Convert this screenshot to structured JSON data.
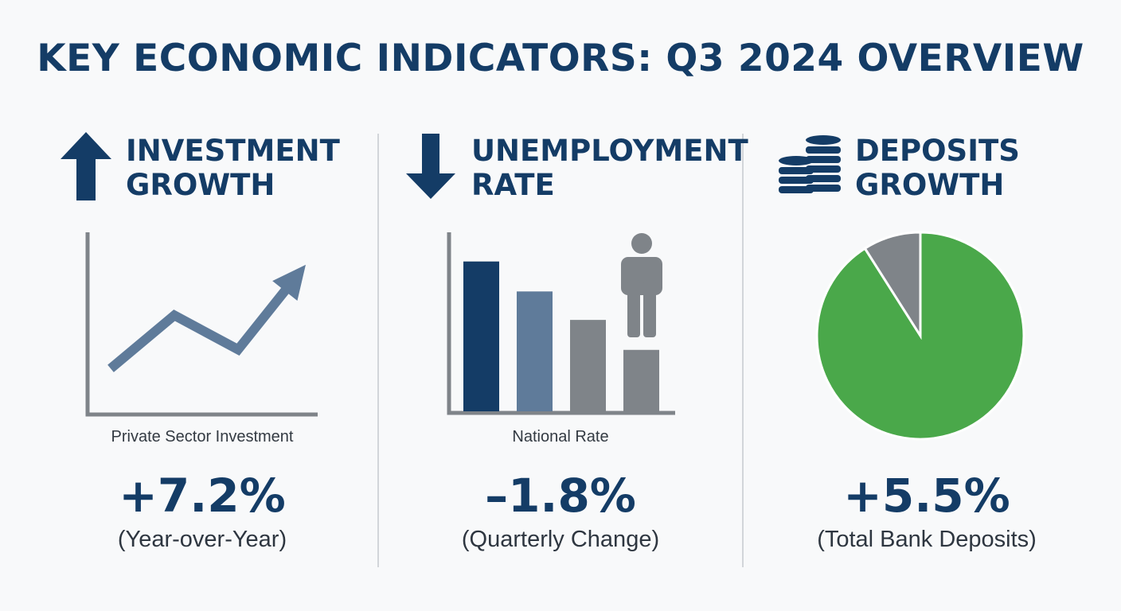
{
  "title": "KEY ECONOMIC INDICATORS: Q3 2024 OVERVIEW",
  "colors": {
    "navy": "#143c66",
    "steel": "#5f7b9a",
    "gray": "#7f8489",
    "green": "#4aa84a",
    "divider": "#d2d5d9"
  },
  "panels": [
    {
      "heading": [
        "INVESTMENT",
        "GROWTH"
      ],
      "icon": "arrow-up-icon",
      "caption": "Private Sector Investment",
      "value": "+7.2%",
      "subtitle": "(Year-over-Year)"
    },
    {
      "heading": [
        "UNEMPLOYMENT",
        "RATE"
      ],
      "icon": "arrow-down-icon",
      "caption": "National Rate",
      "value": "–1.8%",
      "subtitle": "(Quarterly Change)"
    },
    {
      "heading": [
        "DEPOSITS",
        "GROWTH"
      ],
      "icon": "coin-stacks-icon",
      "caption": "",
      "value": "+5.5%",
      "subtitle": "(Total Bank Deposits)"
    }
  ],
  "chart_data": [
    {
      "type": "line",
      "title": "Private Sector Investment",
      "x": [
        1,
        2,
        3,
        4
      ],
      "values": [
        2.0,
        4.8,
        3.0,
        7.2
      ],
      "ylim": [
        0,
        9
      ],
      "grid": false,
      "arrow_at_end": true,
      "color": "#5f7b9a"
    },
    {
      "type": "bar",
      "title": "National Rate",
      "categories": [
        "",
        "",
        "",
        ""
      ],
      "values": [
        100,
        80,
        61,
        41
      ],
      "ylim": [
        0,
        120
      ],
      "bar_colors": [
        "#143c66",
        "#5f7b9a",
        "#7f8489",
        "#7f8489"
      ],
      "grid": false
    },
    {
      "type": "pie",
      "slices": [
        {
          "value": 91,
          "color": "#4aa84a"
        },
        {
          "value": 9,
          "color": "#7f8489"
        }
      ]
    }
  ]
}
